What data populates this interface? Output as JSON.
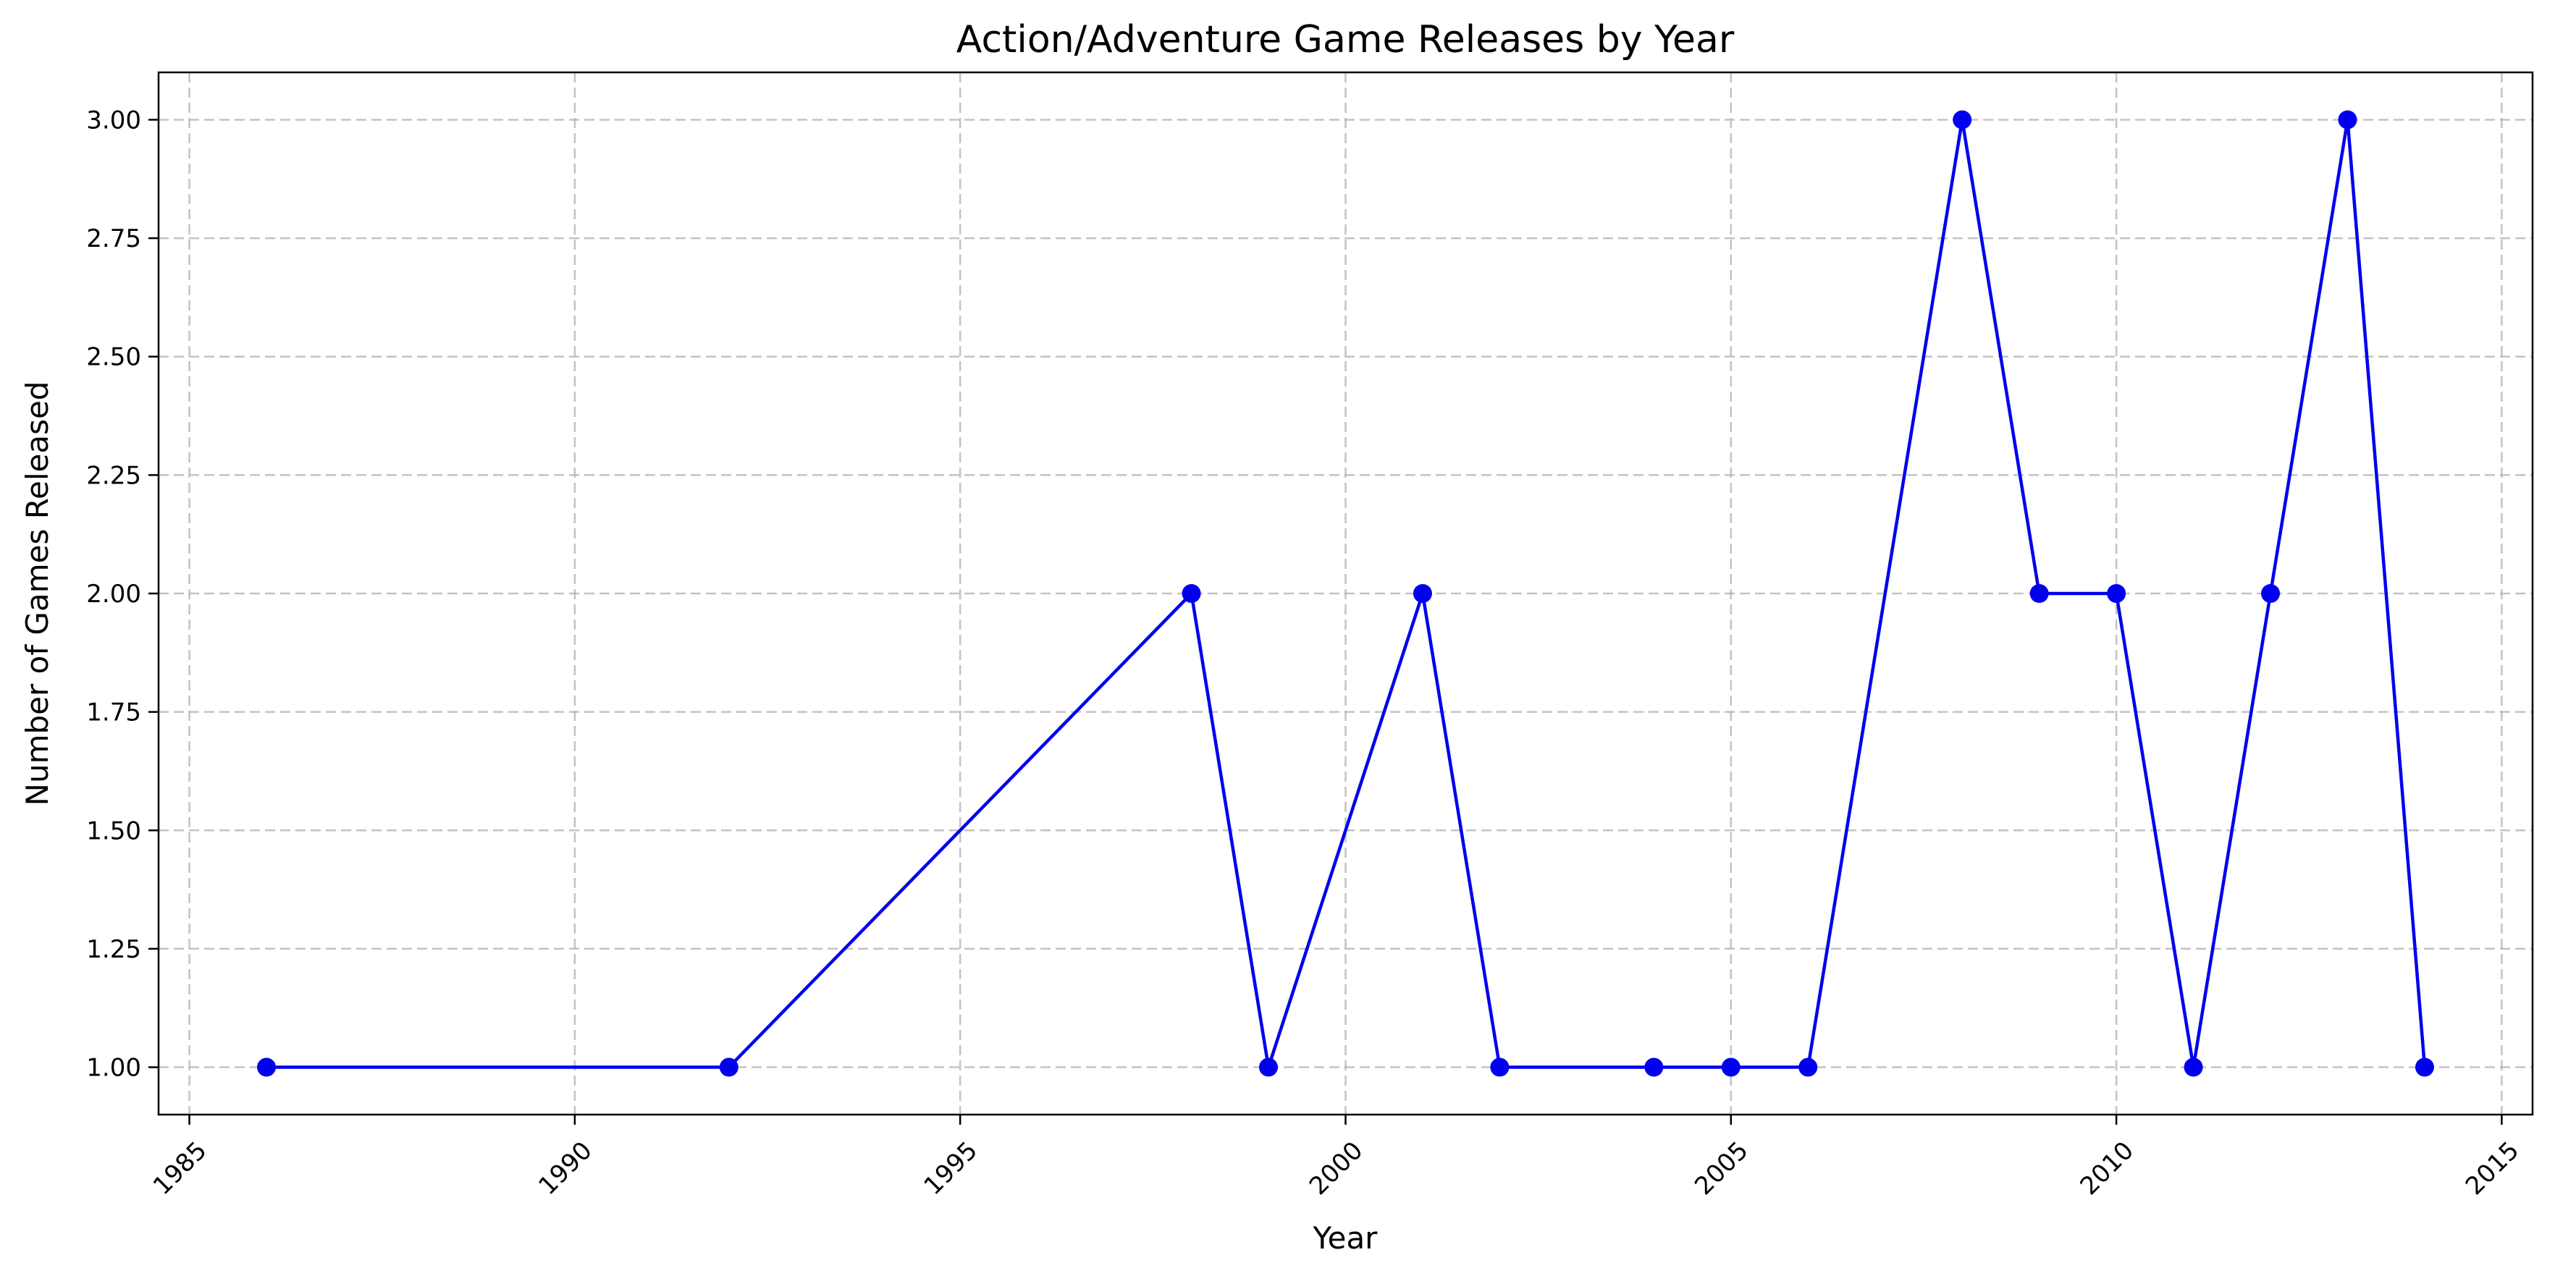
{
  "chart_data": {
    "type": "line",
    "title": "Action/Adventure Game Releases by Year",
    "xlabel": "Year",
    "ylabel": "Number of Games Released",
    "x": [
      1986,
      1992,
      1998,
      1999,
      2001,
      2002,
      2004,
      2005,
      2006,
      2008,
      2009,
      2010,
      2011,
      2012,
      2013,
      2014
    ],
    "values": [
      1,
      1,
      2,
      1,
      2,
      1,
      1,
      1,
      1,
      3,
      2,
      2,
      1,
      2,
      3,
      1
    ],
    "xlim": [
      1984.6,
      2015.4
    ],
    "ylim": [
      0.9,
      3.1
    ],
    "xticks": [
      "1985",
      "1990",
      "1995",
      "2000",
      "2005",
      "2010",
      "2015"
    ],
    "yticks": [
      "1.00",
      "1.25",
      "1.50",
      "1.75",
      "2.00",
      "2.25",
      "2.50",
      "2.75",
      "3.00"
    ],
    "grid": true,
    "line_color": "#0000ee",
    "marker": "circle"
  }
}
